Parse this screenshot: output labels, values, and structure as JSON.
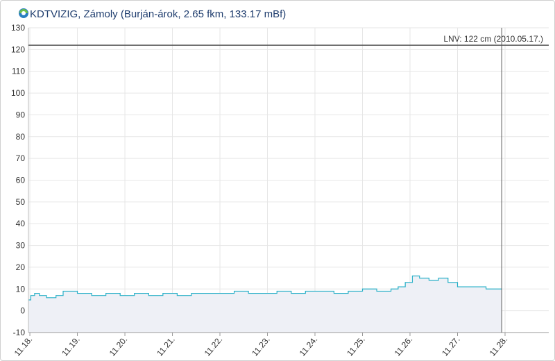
{
  "chart_data": {
    "type": "line",
    "step": true,
    "title": "KDTVIZIG, Zámoly (Burján-árok, 2.65 fkm, 133.17 mBf)",
    "x": [
      17.97,
      18.02,
      18.1,
      18.2,
      18.35,
      18.55,
      18.7,
      19.0,
      19.3,
      19.6,
      19.9,
      20.2,
      20.5,
      20.8,
      21.1,
      21.4,
      21.7,
      22.0,
      22.3,
      22.6,
      22.9,
      23.2,
      23.5,
      23.8,
      24.1,
      24.4,
      24.7,
      25.0,
      25.3,
      25.6,
      25.75,
      25.9,
      26.05,
      26.2,
      26.4,
      26.6,
      26.8,
      27.0,
      27.2,
      27.4,
      27.6,
      27.93
    ],
    "series": [
      {
        "color": "#29b0c8",
        "fill": "#eef0f6",
        "values": [
          5,
          7,
          8,
          7,
          6,
          7,
          9,
          8,
          7,
          8,
          7,
          8,
          7,
          8,
          7,
          8,
          8,
          8,
          9,
          8,
          8,
          9,
          8,
          9,
          9,
          8,
          9,
          10,
          9,
          10,
          11,
          13,
          16,
          15,
          14,
          15,
          13,
          11,
          11,
          11,
          10,
          10
        ]
      }
    ],
    "xlim": [
      17.97,
      28.92
    ],
    "xticks": [
      {
        "value": 18,
        "label": "11.18."
      },
      {
        "value": 19,
        "label": "11.19."
      },
      {
        "value": 20,
        "label": "11.20."
      },
      {
        "value": 21,
        "label": "11.21."
      },
      {
        "value": 22,
        "label": "11.22."
      },
      {
        "value": 23,
        "label": "11.23."
      },
      {
        "value": 24,
        "label": "11.24."
      },
      {
        "value": 25,
        "label": "11.25."
      },
      {
        "value": 26,
        "label": "11.26."
      },
      {
        "value": 27,
        "label": "11.27."
      },
      {
        "value": 28,
        "label": "11.28."
      }
    ],
    "ylim": [
      -10,
      130
    ],
    "yticks": [
      -10,
      0,
      10,
      20,
      30,
      40,
      50,
      60,
      70,
      80,
      90,
      100,
      110,
      120,
      130
    ],
    "grid": true,
    "reference_line": {
      "value": 122,
      "label": "LNV: 122 cm (2010.05.17.)"
    },
    "now_line": 27.93
  }
}
